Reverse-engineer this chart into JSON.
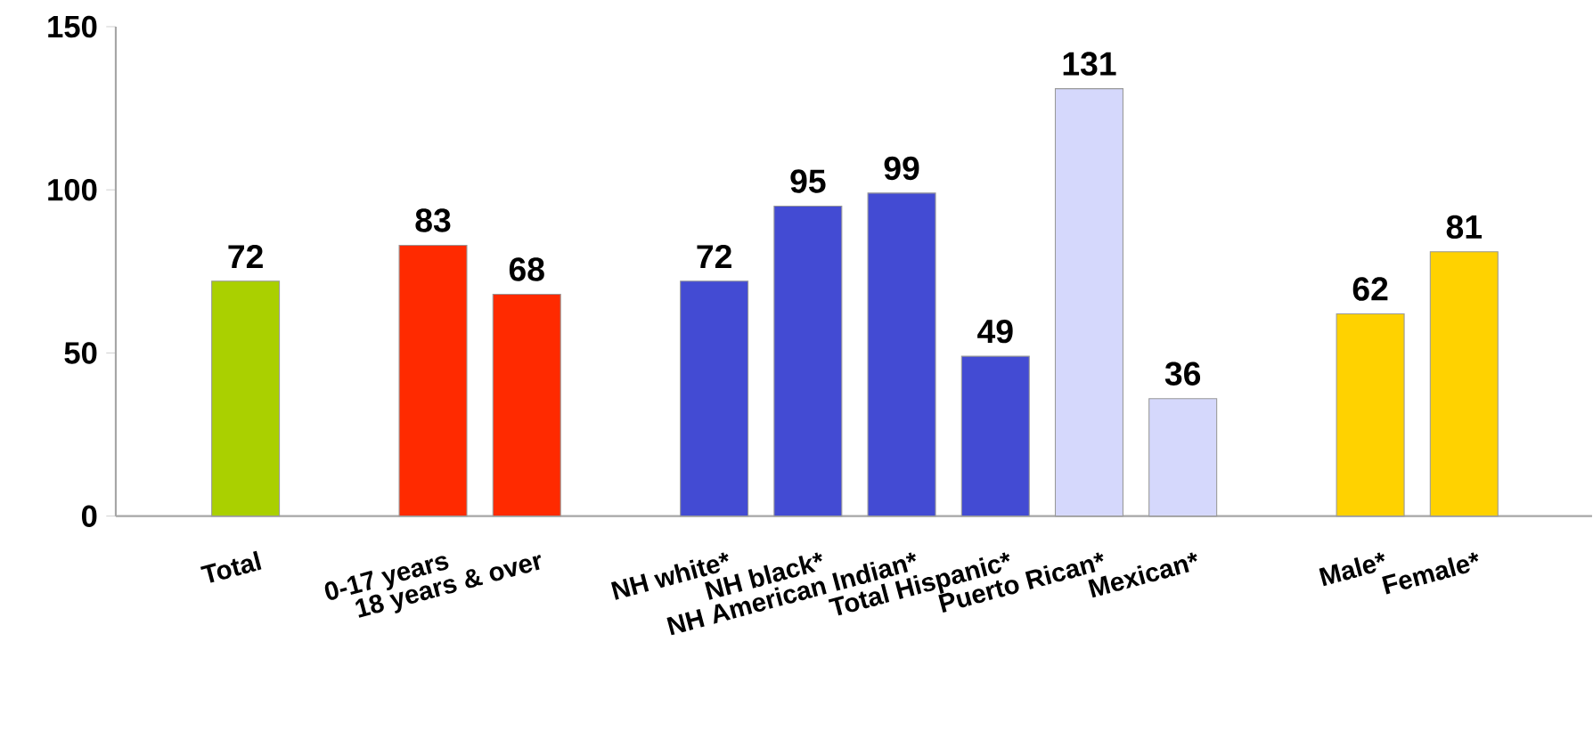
{
  "chart_data": {
    "type": "bar",
    "categories": [
      "Total",
      null,
      "0-17 years",
      "18 years & over",
      null,
      "NH white*",
      "NH black*",
      "NH American Indian*",
      "Total Hispanic*",
      "Puerto Rican*",
      "Mexican*",
      null,
      "Male*",
      "Female*"
    ],
    "values": [
      72,
      null,
      83,
      68,
      null,
      72,
      95,
      99,
      49,
      131,
      36,
      null,
      62,
      81
    ],
    "colors": [
      "#aad000",
      null,
      "#ff2a00",
      "#ff2a00",
      null,
      "#434bd3",
      "#434bd3",
      "#434bd3",
      "#434bd3",
      "#d5d8fc",
      "#d5d8fc",
      null,
      "#ffd200",
      "#ffd200"
    ],
    "ylim": [
      0,
      150
    ],
    "yticks": [
      0,
      50,
      100,
      150
    ],
    "data_labels": true,
    "grid": false
  }
}
